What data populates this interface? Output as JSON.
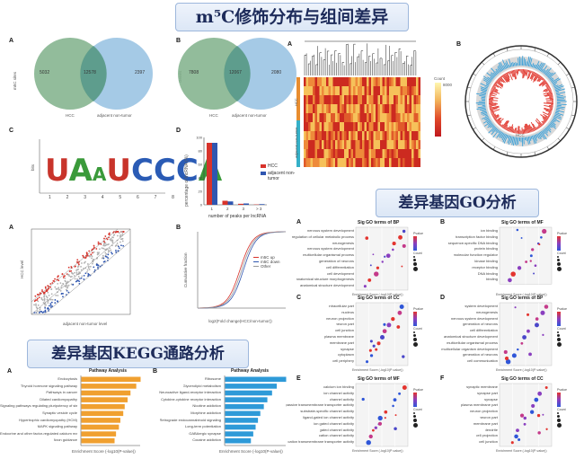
{
  "banners": {
    "m5c": "m⁵C修饰分布与组间差异",
    "go": "差异基因GO分析",
    "kegg": "差异基因KEGG通路分析"
  },
  "panel_labels": {
    "a": "A",
    "b": "B",
    "c": "C",
    "d": "D",
    "e": "E",
    "f": "F"
  },
  "venn_a": {
    "left_only": "5032",
    "overlap": "12578",
    "right_only": "2397",
    "left_label": "HCC",
    "right_label": "adjacent non-tumor",
    "ylabel": "m5C sites"
  },
  "venn_b": {
    "left_only": "7808",
    "overlap": "12067",
    "right_only": "2080",
    "left_label": "HCC",
    "right_label": "adjacent non-tumor",
    "ylabel": "Genes"
  },
  "heatmap": {
    "legend_title": "Count",
    "legend_max": "8000",
    "groups": [
      "HCC",
      "adjacent non-tumor"
    ]
  },
  "circos": {
    "center_label": "HCC"
  },
  "motif": {
    "ylabel": "bits",
    "letters": "UAAUCCCA",
    "positions": [
      "1",
      "2",
      "3",
      "4",
      "5",
      "6",
      "7",
      "8"
    ]
  },
  "chart_data": [
    {
      "type": "bar",
      "title": "",
      "xlabel": "number of peaks per lncRNA",
      "ylabel": "percentage of lncRNA (%)",
      "categories": [
        "1",
        "2",
        "3",
        "> 3"
      ],
      "ylim": [
        0,
        100
      ],
      "yticks": [
        "0",
        "20",
        "40",
        "60",
        "80",
        "100"
      ],
      "series": [
        {
          "name": "HCC",
          "values": [
            92,
            6,
            1.5,
            0.5
          ],
          "color": "#d8332b"
        },
        {
          "name": "adjacent non-tumor",
          "values": [
            92,
            5,
            2,
            1
          ],
          "color": "#2f56b0"
        }
      ]
    },
    {
      "type": "bar",
      "title": "Pathway Analysis",
      "xlabel": "Enrichment Score (-log10(P-value))",
      "categories": [
        "Endocytosis",
        "Thyroid hormone signaling pathway",
        "Pathways in cancer",
        "Dilated cardiomyopathy",
        "Signaling pathways regulating pluripotency of stem cells",
        "Synaptic vesicle cycle",
        "Hypertrophic cardiomyopathy (HCM)",
        "MAPK signaling pathway",
        "Endocrine and other factor-regulated calcium reabsorption",
        "Axon guidance"
      ],
      "values": [
        4.1,
        3.8,
        3.4,
        3.2,
        3.0,
        2.9,
        2.7,
        2.6,
        2.4,
        2.3
      ],
      "color": "#f0a030"
    },
    {
      "type": "bar",
      "title": "Pathway Analysis",
      "xlabel": "Enrichment Score (-log10(P-value))",
      "categories": [
        "Ribosome",
        "Glycerolipid metabolism",
        "Neuroactive ligand-receptor interaction",
        "Cytokine-cytokine receptor interaction",
        "Nicotine addiction",
        "Morphine addiction",
        "Retrograde endocannabinoid signaling",
        "Long-term potentiation",
        "GABAergic synapse",
        "Cocaine addiction"
      ],
      "values": [
        5.2,
        4.4,
        4.0,
        3.6,
        3.3,
        3.0,
        2.8,
        2.6,
        2.4,
        2.2
      ],
      "color": "#2e9ad8"
    }
  ],
  "scatter": {
    "xlabel": "adjacent non-tumor level",
    "ylabel": "HCC level"
  },
  "cdf": {
    "xlabel": "log2(Fold change(HCC/non-tumor))",
    "ylabel": "Cumulative fraction",
    "legend": [
      "m5C up",
      "m5C down",
      "Other"
    ]
  },
  "go_panels": [
    {
      "label": "A",
      "title": "Sig GO terms of BP",
      "terms": [
        "nervous system development",
        "regulation of cellular metabolic process",
        "neurogenesis",
        "nervous system development",
        "multicellular organismal process",
        "generation of neurons",
        "cell differentiation",
        "cell development",
        "anatomical structure morphogenesis",
        "anatomical structure development"
      ]
    },
    {
      "label": "B",
      "title": "Sig GO terms of MF",
      "terms": [
        "ion binding",
        "transcription factor binding",
        "sequence-specific DNA binding",
        "protein binding",
        "molecular function regulator",
        "kinase binding",
        "receptor binding",
        "DNA binding",
        "binding"
      ]
    },
    {
      "label": "C",
      "title": "Sig GO terms of CC",
      "terms": [
        "intracellular part",
        "nucleus",
        "neuron projection",
        "neuron part",
        "cell junction",
        "plasma membrane",
        "membrane part",
        "synapse",
        "cytoplasm",
        "cell periphery"
      ]
    },
    {
      "label": "D",
      "title": "Sig GO terms of BP",
      "terms": [
        "system development",
        "neurogenesis",
        "nervous system development",
        "generation of neurons",
        "cell differentiation",
        "anatomical structure development",
        "multicellular organismal process",
        "multicellular organism development",
        "generation of neurons",
        "cell communication"
      ]
    },
    {
      "label": "E",
      "title": "Sig GO terms of MF",
      "terms": [
        "calcium ion binding",
        "ion channel activity",
        "channel activity",
        "passive transmembrane transporter activity",
        "substrate-specific channel activity",
        "ligand-gated ion channel activity",
        "ion gated channel activity",
        "gated channel activity",
        "cation channel activity",
        "cation transmembrane transporter activity"
      ]
    },
    {
      "label": "F",
      "title": "Sig GO terms of CC",
      "terms": [
        "synaptic membrane",
        "synapse part",
        "synapse",
        "plasma membrane part",
        "neuron projection",
        "neuron part",
        "membrane part",
        "dendrite",
        "cell projection",
        "cell junction"
      ]
    }
  ],
  "go_common": {
    "xlabel": "Enrichment Score (-log10(P-value))",
    "legend_p": "Pvalue",
    "legend_count": "Count"
  }
}
